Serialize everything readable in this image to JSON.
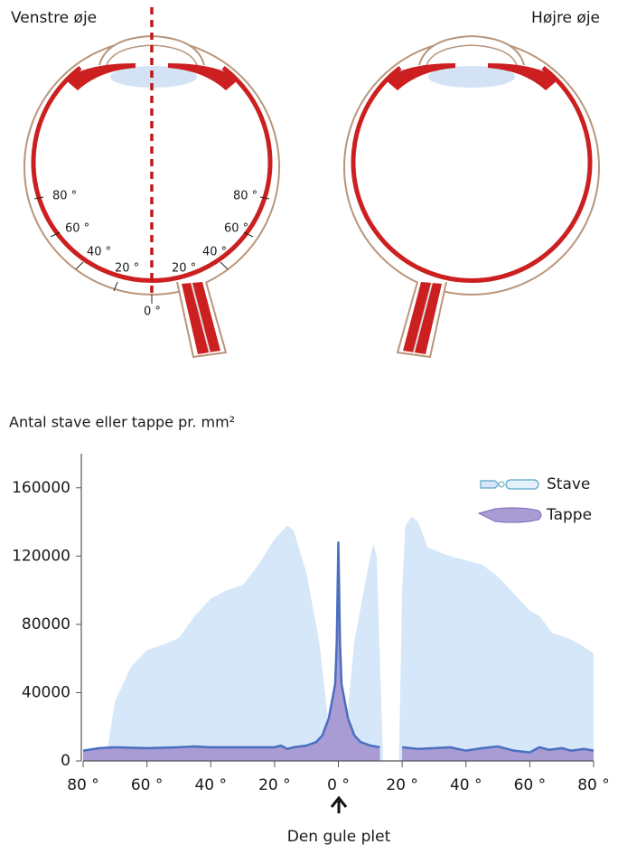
{
  "diagram": {
    "left_title": "Venstre øje",
    "right_title": "Højre øje",
    "left_angles_temporal": [
      "80 °",
      "60 °",
      "40 °",
      "20 °"
    ],
    "left_angles_nasal": [
      "80 °",
      "60 °",
      "40 °",
      "20 °"
    ],
    "center_angle": "0 °"
  },
  "chart_data": {
    "type": "area",
    "title": "Antal stave eller tappe pr. mm²",
    "annotation": "Den gule plet",
    "xlim": [
      -80,
      80
    ],
    "ylim": [
      0,
      180000
    ],
    "xticks": [
      {
        "value": -80,
        "label": "80 °"
      },
      {
        "value": -60,
        "label": "60 °"
      },
      {
        "value": -40,
        "label": "40 °"
      },
      {
        "value": -20,
        "label": "20 °"
      },
      {
        "value": 0,
        "label": "0 °"
      },
      {
        "value": 20,
        "label": "20 °"
      },
      {
        "value": 40,
        "label": "40 °"
      },
      {
        "value": 60,
        "label": "60 °"
      },
      {
        "value": 80,
        "label": "80 °"
      }
    ],
    "yticks": [
      0,
      40000,
      80000,
      120000,
      160000
    ],
    "legend": "top-right",
    "series": [
      {
        "name": "Stave",
        "color": "#d5e7f8",
        "x": [
          -73,
          -70,
          -65,
          -60,
          -55,
          -50,
          -45,
          -40,
          -35,
          -30,
          -25,
          -20,
          -16,
          -14,
          -10,
          -6,
          -3,
          -1,
          0,
          1,
          3,
          5,
          8,
          10,
          11,
          12,
          13,
          14,
          16,
          19,
          20,
          21,
          23,
          25,
          28,
          35,
          45,
          50,
          55,
          60,
          63,
          67,
          72,
          76,
          80
        ],
        "values": [
          0,
          35000,
          55000,
          65000,
          68000,
          72000,
          85000,
          95000,
          100000,
          103000,
          115000,
          130000,
          138000,
          135000,
          110000,
          70000,
          20000,
          2000,
          0,
          2000,
          30000,
          70000,
          100000,
          120000,
          127000,
          120000,
          60000,
          0,
          null,
          0,
          100000,
          138000,
          143000,
          140000,
          125000,
          120000,
          115000,
          108000,
          98000,
          88000,
          85000,
          75000,
          72000,
          68000,
          63000
        ]
      },
      {
        "name": "Tappe",
        "color": "#a99bd3",
        "line_color": "#4a6fbf",
        "x": [
          -80,
          -75,
          -70,
          -60,
          -50,
          -45,
          -40,
          -30,
          -20,
          -18,
          -16,
          -14,
          -10,
          -7,
          -5,
          -3,
          -2,
          -1,
          -0.5,
          0,
          0.5,
          1,
          2,
          3,
          5,
          7,
          10,
          13,
          16,
          20,
          25,
          30,
          35,
          40,
          45,
          50,
          55,
          60,
          63,
          66,
          70,
          73,
          77,
          80
        ],
        "values": [
          6000,
          7500,
          8000,
          7500,
          8000,
          8500,
          8000,
          8000,
          8000,
          9000,
          7000,
          8000,
          9000,
          11000,
          15000,
          25000,
          35000,
          45000,
          70000,
          128000,
          70000,
          45000,
          35000,
          25000,
          15000,
          11000,
          9000,
          8000,
          null,
          8000,
          7000,
          7500,
          8000,
          6000,
          7500,
          8500,
          6000,
          5000,
          8000,
          6500,
          7500,
          6000,
          7000,
          6000
        ]
      }
    ]
  }
}
